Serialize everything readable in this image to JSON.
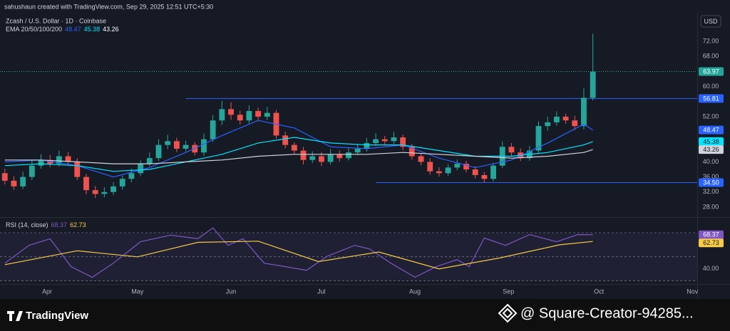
{
  "header": {
    "caption": "sahushaun created with TradingView.com, Sep 29, 2025 12:51 UTC+5:30",
    "currency": "USD"
  },
  "footer": {
    "brand": "TradingView",
    "watermark": "@ Square-Creator-94285..."
  },
  "chart_data": [
    {
      "type": "candlestick",
      "title": "Zcash / U.S. Dollar · 1D · Coinbase",
      "indicator_label": "EMA 20/50/100/200",
      "up_color": "#26a69a",
      "down_color": "#ef5350",
      "x": [
        -14,
        -11,
        -8,
        -5,
        -2,
        1,
        4,
        7,
        10,
        13,
        16,
        19,
        22,
        25,
        28,
        31,
        34,
        37,
        40,
        43,
        46,
        49,
        52,
        55,
        58,
        61,
        64,
        67,
        70,
        73,
        76,
        79,
        82,
        85,
        88,
        91,
        94,
        97,
        100,
        103,
        106,
        109,
        112,
        115,
        118,
        121,
        124,
        127,
        130,
        133,
        136,
        139,
        142,
        145,
        148,
        151,
        154,
        157,
        160,
        163,
        166,
        169,
        172,
        175,
        178,
        181
      ],
      "open": [
        37,
        35,
        33.5,
        36,
        39,
        40.5,
        39.5,
        41.5,
        40,
        36,
        32.5,
        31.5,
        32,
        33.5,
        35.5,
        37,
        39.5,
        41,
        44.5,
        45.5,
        43.5,
        44.5,
        42.5,
        46,
        51,
        54,
        52.5,
        51,
        53.5,
        52,
        53,
        47,
        44.5,
        43,
        40.5,
        41.5,
        40,
        42,
        41,
        42.5,
        43.5,
        45,
        46,
        45.5,
        46.5,
        44,
        41.5,
        40,
        37.5,
        37,
        38.5,
        39.5,
        38,
        36.5,
        35.5,
        39,
        44,
        42.5,
        41,
        43,
        49.5,
        50.5,
        52,
        51,
        49.5,
        57
      ],
      "high": [
        38.2,
        36.2,
        37.4,
        40.3,
        42,
        41.8,
        43,
        42.6,
        41,
        36.8,
        33.6,
        33.3,
        34.6,
        36.4,
        38.2,
        40.4,
        42.5,
        46,
        47.2,
        46.4,
        45.6,
        45.3,
        47.5,
        52.4,
        56.2,
        55.8,
        53.6,
        55,
        54.4,
        54.6,
        53.8,
        48,
        45.2,
        44,
        42.8,
        42.6,
        43.4,
        43,
        43.8,
        44.8,
        46.3,
        47.6,
        46.9,
        48,
        47.2,
        44.8,
        42.4,
        40.9,
        38.6,
        39.4,
        40.6,
        40.3,
        38.9,
        37.3,
        39.8,
        45.4,
        45,
        43.6,
        44.2,
        50.8,
        52,
        53.4,
        52.8,
        52.2,
        59.5,
        74
      ],
      "low": [
        34,
        32.6,
        32.8,
        35.2,
        38.2,
        38.6,
        38.8,
        39.1,
        35.2,
        31.4,
        30.4,
        30.6,
        31.2,
        32.7,
        34.6,
        36.2,
        38.8,
        40.2,
        43.4,
        42.6,
        42.8,
        41.7,
        41.6,
        45.3,
        49.8,
        51.2,
        49.9,
        50.2,
        50.8,
        51.1,
        46.2,
        43.6,
        42.1,
        39.3,
        39.7,
        38.9,
        39.3,
        40.1,
        40.4,
        41.8,
        42.7,
        44.2,
        44.6,
        44.8,
        43.1,
        40.6,
        39.1,
        36.6,
        36.1,
        36.3,
        37.8,
        37.2,
        35.6,
        34.6,
        34.8,
        38.4,
        41.6,
        40.2,
        40.3,
        42.4,
        48.3,
        49.6,
        50.1,
        48.4,
        48.6,
        56.3
      ],
      "close": [
        35,
        33.5,
        36,
        39,
        40.5,
        39.5,
        41.5,
        40,
        36,
        32.5,
        31.5,
        32,
        33.5,
        35.5,
        37,
        39.5,
        41,
        44.5,
        45.5,
        43.5,
        44.5,
        42.5,
        46,
        51,
        54,
        52.5,
        51,
        53.5,
        52,
        53,
        47,
        44.5,
        43,
        40.5,
        41.5,
        40,
        42,
        41,
        42.5,
        43.5,
        45,
        46,
        45.5,
        46.5,
        44,
        41.5,
        40,
        37.5,
        37,
        38.5,
        39.5,
        38,
        36.5,
        35.5,
        39,
        44,
        42.5,
        41,
        43,
        49.5,
        50.5,
        52,
        51,
        49.5,
        57,
        63.97
      ],
      "series": [
        {
          "color": "#2962ff",
          "x": [
            -14,
            -2,
            10,
            22,
            34,
            46,
            58,
            70,
            82,
            94,
            106,
            118,
            130,
            142,
            154,
            166,
            178,
            181
          ],
          "values": [
            40,
            40.5,
            39,
            36,
            38.5,
            42.5,
            47,
            51,
            49,
            44,
            43.5,
            44.5,
            41,
            38.5,
            40.5,
            45,
            50,
            48.47
          ]
        },
        {
          "color": "#00e5ff",
          "x": [
            -14,
            -2,
            10,
            22,
            34,
            46,
            58,
            70,
            82,
            94,
            106,
            118,
            130,
            142,
            154,
            166,
            178,
            181
          ],
          "values": [
            39,
            39.5,
            39,
            37.5,
            38,
            40,
            42,
            45,
            46.5,
            45,
            44.5,
            44.5,
            43,
            41.5,
            41.5,
            42.5,
            44.5,
            45.38
          ]
        },
        {
          "color": "#d1d4dc",
          "x": [
            -14,
            -2,
            10,
            22,
            34,
            46,
            58,
            70,
            82,
            94,
            106,
            118,
            130,
            142,
            154,
            166,
            178,
            181
          ],
          "values": [
            40.5,
            40.5,
            40,
            39.5,
            39.5,
            40,
            40.5,
            41.5,
            42,
            42,
            42,
            42.5,
            42,
            41.5,
            41,
            41.5,
            42.5,
            43.26
          ]
        }
      ],
      "price_lines": [
        {
          "value": 56.81,
          "label": "56.81",
          "x": 46,
          "color": "#2962ff"
        },
        {
          "value": 34.5,
          "label": "34.50",
          "x": 109,
          "color": "#2962ff"
        }
      ],
      "xlim": [
        -15.6,
        215.6
      ],
      "xticks": [
        {
          "value": 0,
          "label": "Apr"
        },
        {
          "value": 30,
          "label": "May"
        },
        {
          "value": 61,
          "label": "Jun"
        },
        {
          "value": 91,
          "label": "Jul"
        },
        {
          "value": 122,
          "label": "Aug"
        },
        {
          "value": 153,
          "label": "Sep"
        },
        {
          "value": 183,
          "label": "Oct"
        },
        {
          "value": 214,
          "label": "Nov"
        }
      ],
      "ylim": [
        25.35,
        79.55
      ],
      "yticks": [
        {
          "value": 28,
          "label": "28.00"
        },
        {
          "value": 32,
          "label": "32.00"
        },
        {
          "value": 36,
          "label": "36.00"
        },
        {
          "value": 40,
          "label": "40.00"
        },
        {
          "value": 52,
          "label": "52.00"
        },
        {
          "value": 60,
          "label": "60.00"
        },
        {
          "value": 68,
          "label": "68.00"
        },
        {
          "value": 72,
          "label": "72.00"
        }
      ]
    },
    {
      "type": "line",
      "title": "RSI (14, close)",
      "series": [
        {
          "color": "#7e57c2",
          "x": [
            -14,
            -6,
            1,
            8,
            15,
            22,
            31,
            41,
            50,
            55,
            60,
            65,
            72,
            79,
            86,
            93,
            102,
            107,
            114,
            122,
            129,
            136,
            140,
            145,
            152,
            160,
            169,
            176,
            181
          ],
          "values": [
            44.7,
            59.5,
            65,
            41.8,
            33,
            44.7,
            62.5,
            68,
            65,
            74,
            59.5,
            65,
            44.7,
            41.8,
            38.8,
            50.6,
            59.5,
            56.5,
            44.7,
            33,
            41.8,
            47.7,
            41.8,
            65.6,
            59.5,
            68.4,
            62.5,
            68.4,
            68.37
          ]
        },
        {
          "color": "#f7c948",
          "x": [
            -14,
            10,
            30,
            50,
            70,
            90,
            110,
            130,
            150,
            170,
            181
          ],
          "values": [
            43.5,
            55,
            50,
            62,
            63,
            46,
            54,
            40,
            49,
            60,
            62.73
          ]
        }
      ],
      "levels": [
        70,
        50,
        30
      ],
      "ylim": [
        26.8,
        81.2
      ],
      "yticks": [
        {
          "value": 40,
          "label": "40.00"
        }
      ]
    }
  ]
}
